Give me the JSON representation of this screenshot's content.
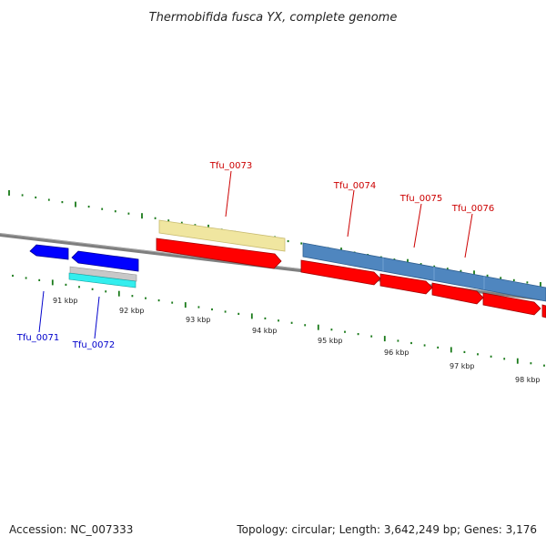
{
  "title": "Thermobifida fusca YX, complete genome",
  "footer": {
    "accession": "Accession: NC_007333",
    "summary": "Topology: circular; Length: 3,642,249 bp; Genes: 3,176"
  },
  "colors": {
    "backbone": "#7f7f7f",
    "tick": "#1a7a1a",
    "forward_label": "#cc0000",
    "reverse_label": "#0000cc",
    "cds_red": "#ff0000",
    "cds_blue": "#0000ff",
    "feature_yellow": "#f0e6a0",
    "feature_steelblue": "#4f86bf",
    "feature_cyan": "#33eeee",
    "feature_grey": "#c8c8c8"
  },
  "scale_labels": [
    "91 kbp",
    "92 kbp",
    "93 kbp",
    "94 kbp",
    "95 kbp",
    "96 kbp",
    "97 kbp",
    "98 kbp"
  ],
  "genes": {
    "forward": [
      "Tfu_0073",
      "Tfu_0074",
      "Tfu_0075",
      "Tfu_0076"
    ],
    "reverse": [
      "Tfu_0071",
      "Tfu_0072"
    ]
  }
}
